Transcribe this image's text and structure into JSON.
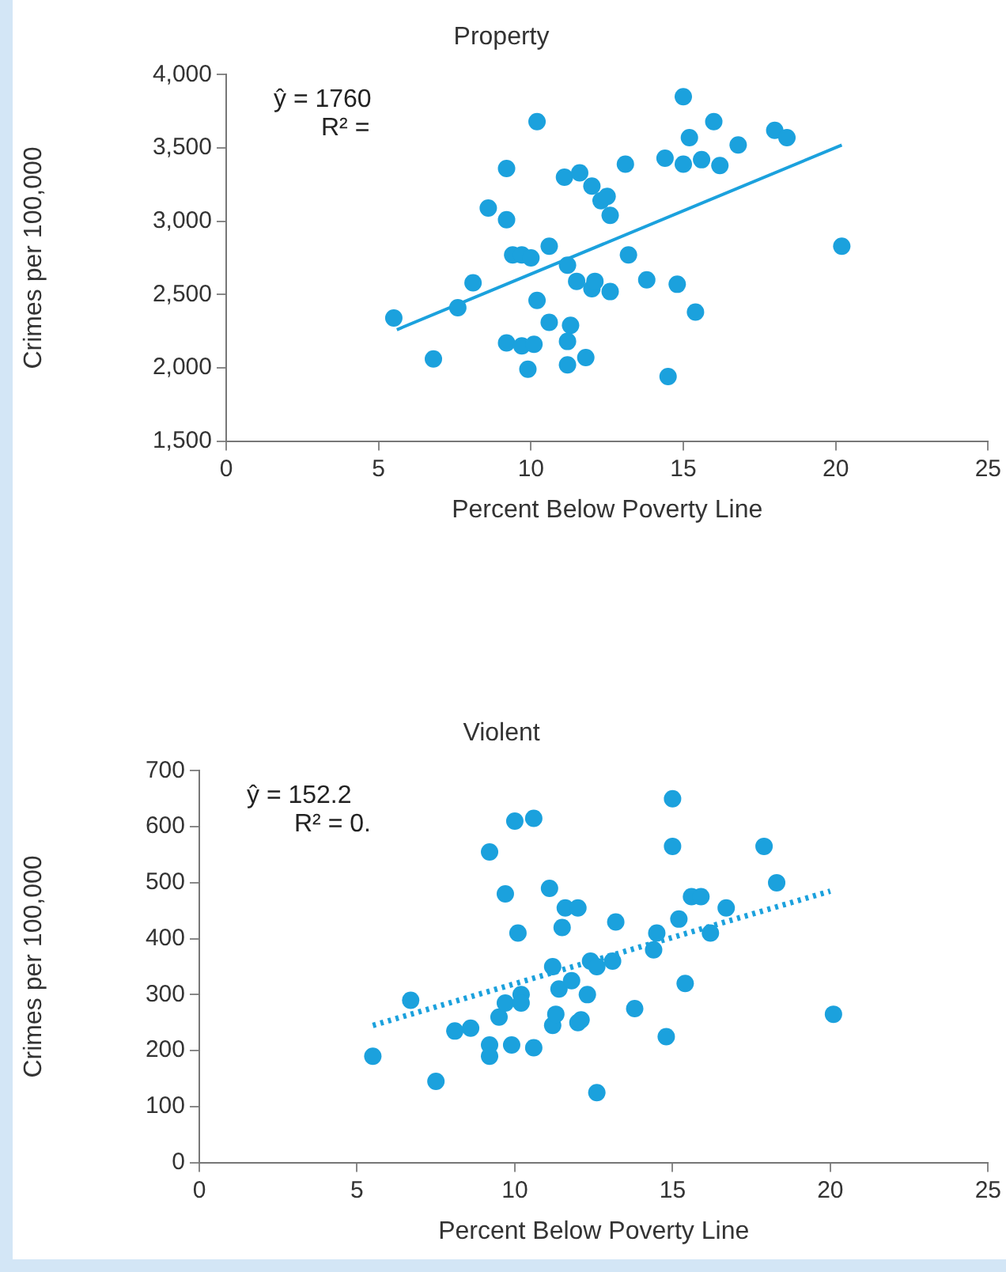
{
  "chart_data": [
    {
      "type": "scatter",
      "title": "Property",
      "xlabel": "Percent Below Poverty Line",
      "ylabel": "Crimes per 100,000",
      "annotations": [
        "ŷ = 1760",
        "R² ="
      ],
      "marker": "circle",
      "grid": false,
      "legend": false,
      "xlim": [
        0,
        25
      ],
      "xticks": [
        0,
        5,
        10,
        15,
        20,
        25
      ],
      "ylim": [
        1500,
        4000
      ],
      "yticks": [
        {
          "value": 1500,
          "label": "1,500"
        },
        {
          "value": 2000,
          "label": "2,000"
        },
        {
          "value": 2500,
          "label": "2,500"
        },
        {
          "value": 3000,
          "label": "3,000"
        },
        {
          "value": 3500,
          "label": "3,500"
        },
        {
          "value": 4000,
          "label": "4,000"
        }
      ],
      "series": [
        {
          "color": "#1ba1dd",
          "x": [
            5.5,
            6.8,
            7.6,
            8.1,
            8.6,
            9.2,
            9.2,
            9.2,
            9.4,
            9.7,
            9.7,
            9.9,
            10.0,
            10.1,
            10.2,
            10.2,
            10.6,
            10.6,
            11.1,
            11.2,
            11.3,
            11.2,
            11.2,
            11.5,
            11.6,
            11.8,
            12.0,
            12.0,
            12.1,
            12.3,
            12.5,
            12.6,
            12.6,
            13.1,
            13.2,
            13.8,
            14.4,
            14.5,
            14.8,
            15.0,
            15.0,
            15.2,
            15.4,
            15.6,
            16.0,
            16.2,
            16.8,
            18.0,
            18.4,
            20.2
          ],
          "values": [
            2340,
            2060,
            2410,
            2580,
            3090,
            3360,
            3010,
            2170,
            2770,
            2770,
            2150,
            1990,
            2750,
            2160,
            2460,
            3680,
            2830,
            2310,
            3300,
            2700,
            2290,
            2180,
            2020,
            2590,
            3330,
            2070,
            3240,
            2540,
            2590,
            3140,
            3170,
            3040,
            2520,
            3390,
            2770,
            2600,
            3430,
            1940,
            2570,
            3850,
            3390,
            3570,
            2380,
            3420,
            3680,
            3380,
            3520,
            3620,
            3570,
            2830
          ]
        },
        {
          "type": "line",
          "color": "#1ba1dd",
          "line_style": "solid",
          "marker": "none",
          "x": [
            5.6,
            20.2
          ],
          "values": [
            2260,
            3520
          ]
        }
      ]
    },
    {
      "type": "scatter",
      "title": "Violent",
      "xlabel": "Percent Below Poverty Line",
      "ylabel": "Crimes per 100,000",
      "annotations": [
        "ŷ = 152.2",
        "R² = 0."
      ],
      "marker": "circle",
      "grid": false,
      "legend": false,
      "xlim": [
        0,
        25
      ],
      "xticks": [
        0,
        5,
        10,
        15,
        20,
        25
      ],
      "ylim": [
        0,
        700
      ],
      "yticks": [
        0,
        100,
        200,
        300,
        400,
        500,
        600,
        700
      ],
      "series": [
        {
          "color": "#1ba1dd",
          "x": [
            5.5,
            6.7,
            7.5,
            8.1,
            8.6,
            9.2,
            9.2,
            9.2,
            9.5,
            9.7,
            9.7,
            9.9,
            10.0,
            10.1,
            10.2,
            10.2,
            10.6,
            10.6,
            11.1,
            11.2,
            11.2,
            11.3,
            11.4,
            11.5,
            11.6,
            11.8,
            12.0,
            12.0,
            12.1,
            12.3,
            12.4,
            12.6,
            12.6,
            13.1,
            13.2,
            13.8,
            14.4,
            14.5,
            14.8,
            15.0,
            15.0,
            15.2,
            15.4,
            15.6,
            15.9,
            16.2,
            16.7,
            17.9,
            18.3,
            20.1
          ],
          "values": [
            190,
            290,
            145,
            235,
            240,
            555,
            210,
            190,
            260,
            480,
            285,
            210,
            610,
            410,
            300,
            285,
            615,
            205,
            490,
            350,
            245,
            265,
            310,
            420,
            455,
            325,
            455,
            250,
            255,
            300,
            360,
            125,
            350,
            360,
            430,
            275,
            380,
            410,
            225,
            650,
            565,
            435,
            320,
            475,
            475,
            410,
            455,
            565,
            500,
            265
          ]
        },
        {
          "type": "line",
          "color": "#1ba1dd",
          "line_style": "dotted",
          "marker": "none",
          "x": [
            5.5,
            20.0
          ],
          "values": [
            245,
            485
          ]
        }
      ]
    }
  ]
}
